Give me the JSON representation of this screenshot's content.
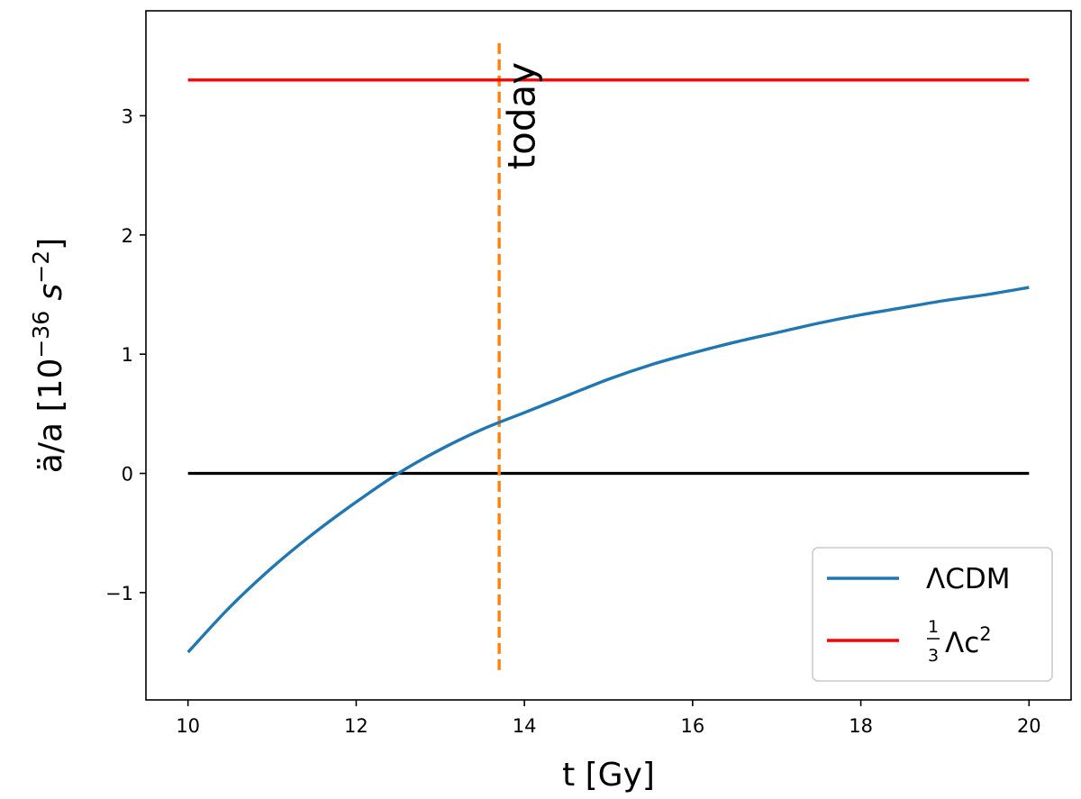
{
  "chart_data": {
    "type": "line",
    "xlabel": "t [Gy]",
    "ylabel": "ä/a [10⁻³⁶ s⁻²]",
    "ylabel_parts": {
      "base": "ä/a [10",
      "exp": "−36",
      "mid": " s",
      "exp2": "−2",
      "end": "]"
    },
    "xlim": [
      9.5,
      20.5
    ],
    "ylim": [
      -1.9,
      3.88
    ],
    "xticks": [
      10,
      12,
      14,
      16,
      18,
      20
    ],
    "xtick_labels": [
      "10",
      "12",
      "14",
      "16",
      "18",
      "20"
    ],
    "yticks": [
      -1,
      0,
      1,
      2,
      3
    ],
    "ytick_labels": [
      "−1",
      "0",
      "1",
      "2",
      "3"
    ],
    "grid": false,
    "legend_position": "lower-right",
    "series": [
      {
        "name": "ΛCDM",
        "color": "#1f77b4",
        "x": [
          10,
          10.5,
          11,
          11.5,
          12,
          12.5,
          13,
          13.5,
          14,
          14.5,
          15,
          15.5,
          16,
          16.5,
          17,
          17.5,
          18,
          18.5,
          19,
          19.5,
          20
        ],
        "y": [
          -1.5,
          -1.12,
          -0.79,
          -0.5,
          -0.24,
          0.0,
          0.2,
          0.37,
          0.51,
          0.65,
          0.79,
          0.91,
          1.01,
          1.1,
          1.18,
          1.26,
          1.33,
          1.39,
          1.45,
          1.5,
          1.56
        ]
      },
      {
        "name": "⅓Λc²",
        "name_parts": {
          "num": "1",
          "den": "3",
          "base": "Λc",
          "exp": "2"
        },
        "color": "#ff0000",
        "x": [
          10,
          20
        ],
        "y": [
          3.3,
          3.3
        ]
      }
    ],
    "reference_lines": [
      {
        "kind": "horizontal",
        "y": 0,
        "x_range": [
          10,
          20
        ],
        "color": "#000000"
      },
      {
        "kind": "vertical",
        "x": 13.7,
        "y_range": [
          -1.65,
          3.65
        ],
        "color": "#ff7f0e",
        "style": "dashed"
      }
    ],
    "annotations": [
      {
        "text": "today",
        "x": 13.8,
        "y": 3.45,
        "rotation": -90
      }
    ]
  }
}
